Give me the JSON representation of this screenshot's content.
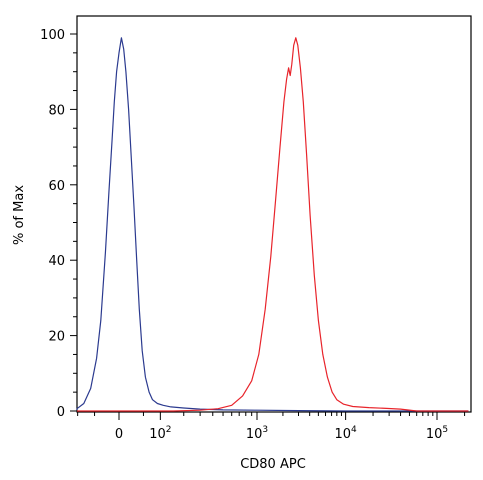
{
  "chart_data": {
    "type": "line",
    "xlabel": "CD80 APC",
    "ylabel": "% of Max",
    "xscale": "biexponential",
    "ylim": [
      0,
      105
    ],
    "y_ticks": [
      "0",
      "20",
      "40",
      "60",
      "80",
      "100"
    ],
    "x_ticks": [
      {
        "value": 0,
        "label": "0"
      },
      {
        "value": 100,
        "label": "10",
        "exp": "2"
      },
      {
        "value": 1000,
        "label": "10",
        "exp": "3"
      },
      {
        "value": 10000,
        "label": "10",
        "exp": "4"
      },
      {
        "value": 100000,
        "label": "10",
        "exp": "5"
      }
    ],
    "grid": false,
    "legend": "none",
    "series": [
      {
        "color": "#2b3a8f",
        "points": [
          [
            -180,
            0.3
          ],
          [
            -120,
            0.6
          ],
          [
            -80,
            2
          ],
          [
            -60,
            6
          ],
          [
            -45,
            14
          ],
          [
            -35,
            24
          ],
          [
            -25,
            42
          ],
          [
            -18,
            58
          ],
          [
            -12,
            72
          ],
          [
            -8,
            82
          ],
          [
            -4,
            90
          ],
          [
            0,
            95
          ],
          [
            4,
            99
          ],
          [
            8,
            96
          ],
          [
            12,
            90
          ],
          [
            17,
            80
          ],
          [
            22,
            68
          ],
          [
            28,
            54
          ],
          [
            34,
            40
          ],
          [
            40,
            27
          ],
          [
            47,
            16
          ],
          [
            55,
            9
          ],
          [
            65,
            5
          ],
          [
            75,
            3
          ],
          [
            90,
            2
          ],
          [
            110,
            1.5
          ],
          [
            140,
            1.1
          ],
          [
            200,
            0.8
          ],
          [
            300,
            0.5
          ],
          [
            500,
            0.3
          ],
          [
            1000,
            0.2
          ],
          [
            3000,
            0.1
          ],
          [
            10000,
            0
          ],
          [
            100000,
            0
          ],
          [
            220000,
            0
          ]
        ]
      },
      {
        "color": "#e8242b",
        "points": [
          [
            -180,
            0
          ],
          [
            50,
            0
          ],
          [
            150,
            0
          ],
          [
            300,
            0.2
          ],
          [
            450,
            0.6
          ],
          [
            600,
            1.5
          ],
          [
            750,
            4
          ],
          [
            900,
            8
          ],
          [
            1050,
            15
          ],
          [
            1250,
            27
          ],
          [
            1450,
            41
          ],
          [
            1650,
            56
          ],
          [
            1850,
            70
          ],
          [
            2050,
            82
          ],
          [
            2200,
            88
          ],
          [
            2320,
            91
          ],
          [
            2420,
            89
          ],
          [
            2520,
            92
          ],
          [
            2650,
            97
          ],
          [
            2800,
            99
          ],
          [
            2950,
            97
          ],
          [
            3150,
            91
          ],
          [
            3400,
            82
          ],
          [
            3700,
            68
          ],
          [
            4050,
            52
          ],
          [
            4500,
            36
          ],
          [
            5000,
            24
          ],
          [
            5600,
            15
          ],
          [
            6300,
            9
          ],
          [
            7100,
            5
          ],
          [
            8000,
            3
          ],
          [
            9500,
            1.8
          ],
          [
            12000,
            1.2
          ],
          [
            18000,
            0.9
          ],
          [
            28000,
            0.7
          ],
          [
            40000,
            0.5
          ],
          [
            60000,
            0
          ],
          [
            220000,
            0
          ]
        ]
      }
    ]
  }
}
